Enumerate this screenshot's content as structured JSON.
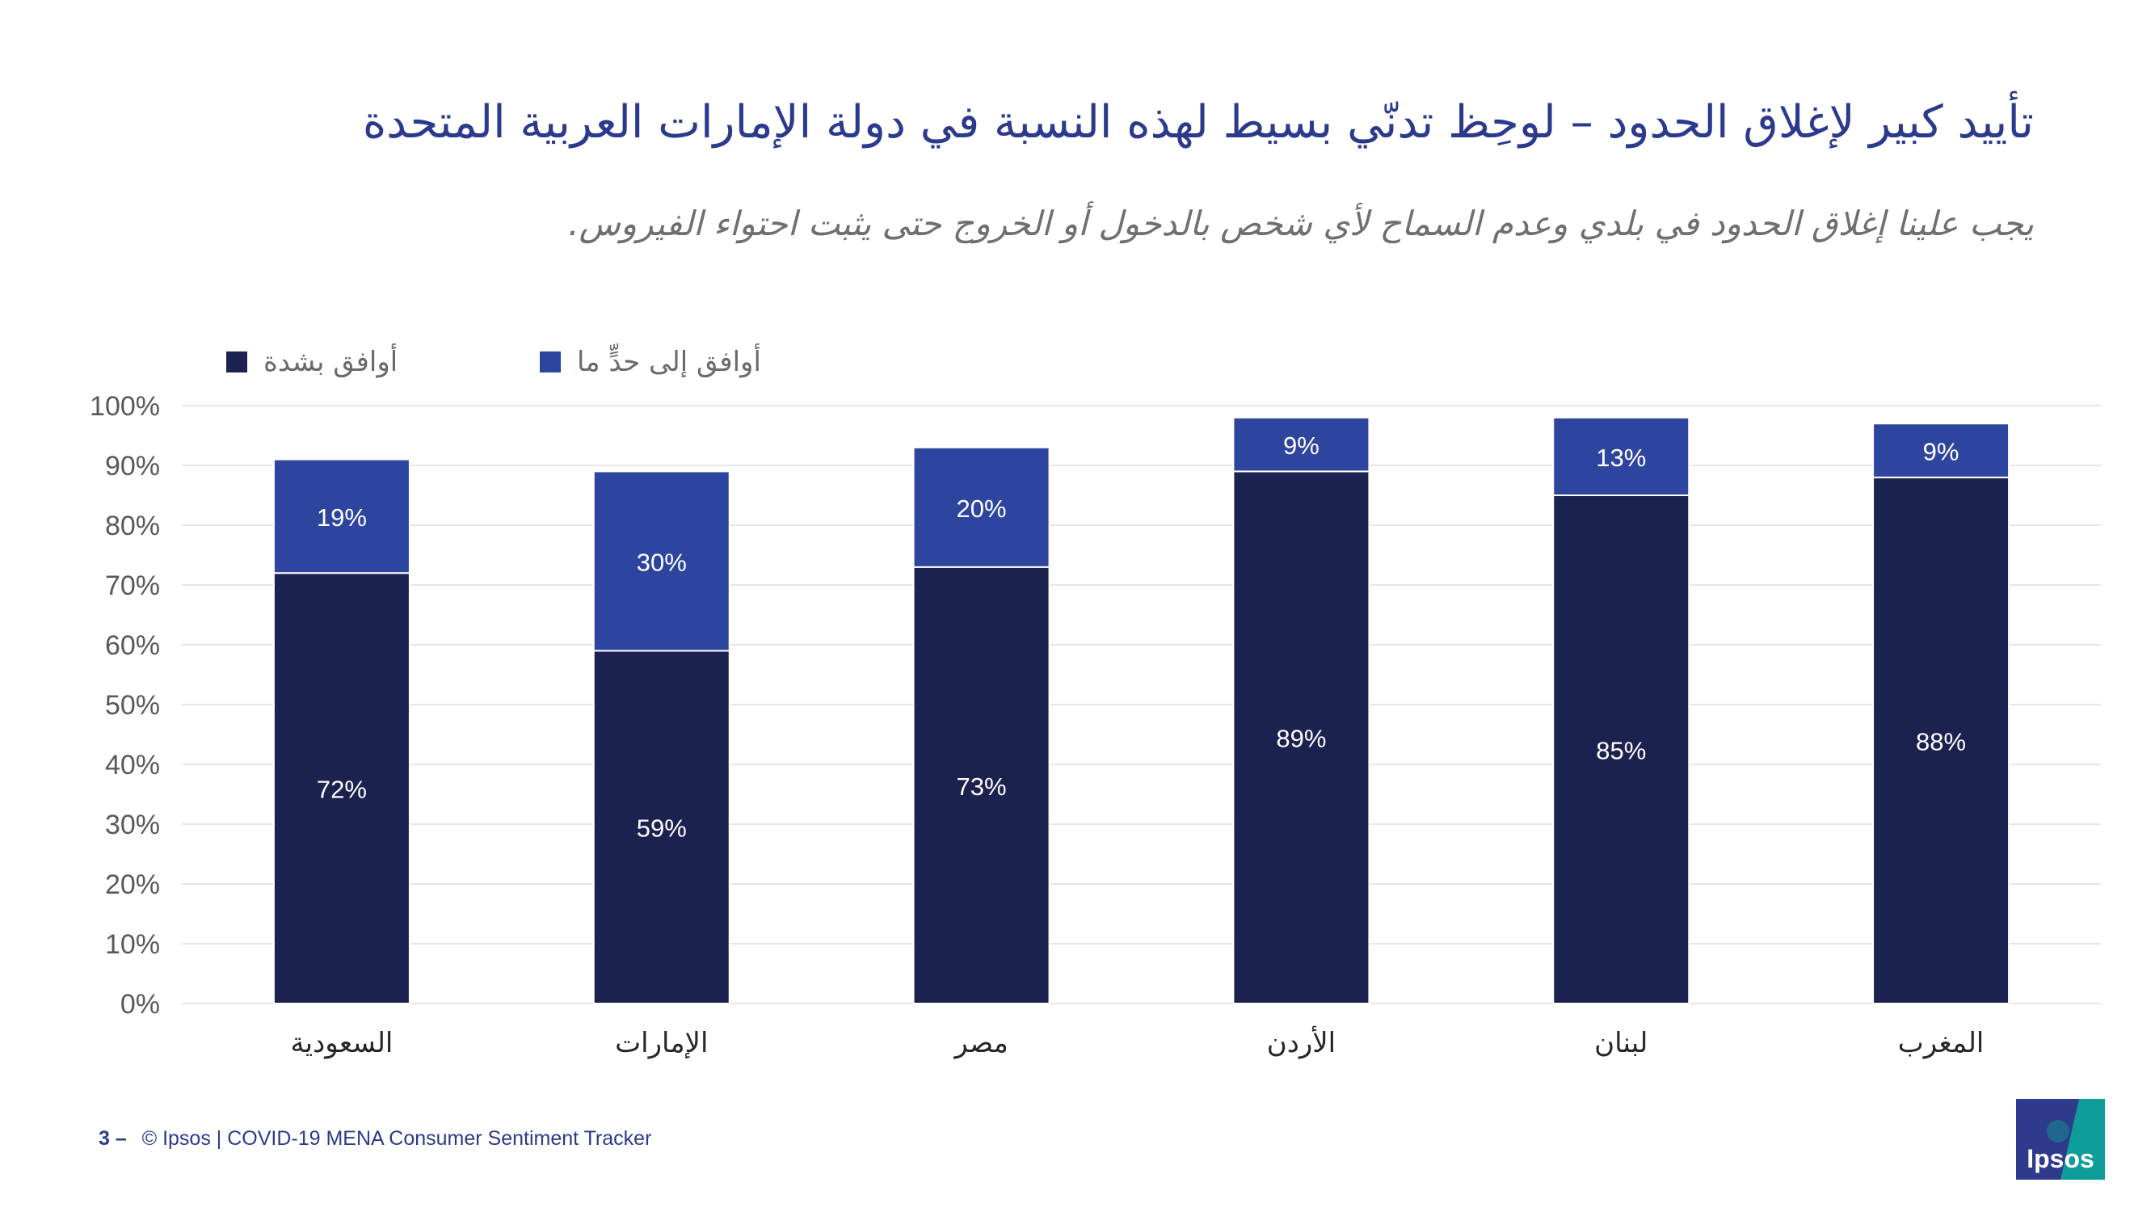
{
  "slide": {
    "title": "تأييد كبير لإغلاق الحدود – لوحِظ تدنّي بسيط لهذه النسبة في دولة الإمارات العربية المتحدة",
    "subtitle": "يجب علينا إغلاق الحدود في بلدي وعدم السماح لأي شخص بالدخول أو الخروج حتى يثبت احتواء الفيروس."
  },
  "footer": {
    "page_number": "3 –",
    "text": "© Ipsos | COVID-19 MENA Consumer Sentiment Tracker"
  },
  "logo": {
    "text": "Ipsos",
    "colors": {
      "blue": "#2e3a8c",
      "teal": "#0f9d9a"
    }
  },
  "chart_data": {
    "type": "bar",
    "stacked": true,
    "categories": [
      "السعودية",
      "الإمارات",
      "مصر",
      "الأردن",
      "لبنان",
      "المغرب"
    ],
    "series": [
      {
        "name": "أوافق بشدة",
        "values": [
          72,
          59,
          73,
          89,
          85,
          88
        ],
        "color": "#1b2250"
      },
      {
        "name": "أوافق إلى حدٍّ ما",
        "values": [
          19,
          30,
          20,
          9,
          13,
          9
        ],
        "color": "#2e45a0"
      }
    ],
    "data_labels": [
      [
        "72%",
        "59%",
        "73%",
        "89%",
        "85%",
        "88%"
      ],
      [
        "19%",
        "30%",
        "20%",
        "9%",
        "13%",
        "9%"
      ]
    ],
    "ylim": [
      0,
      100
    ],
    "yticks": [
      "0%",
      "10%",
      "20%",
      "30%",
      "40%",
      "50%",
      "60%",
      "70%",
      "80%",
      "90%",
      "100%"
    ],
    "grid": true,
    "legend_position": "top-left"
  }
}
